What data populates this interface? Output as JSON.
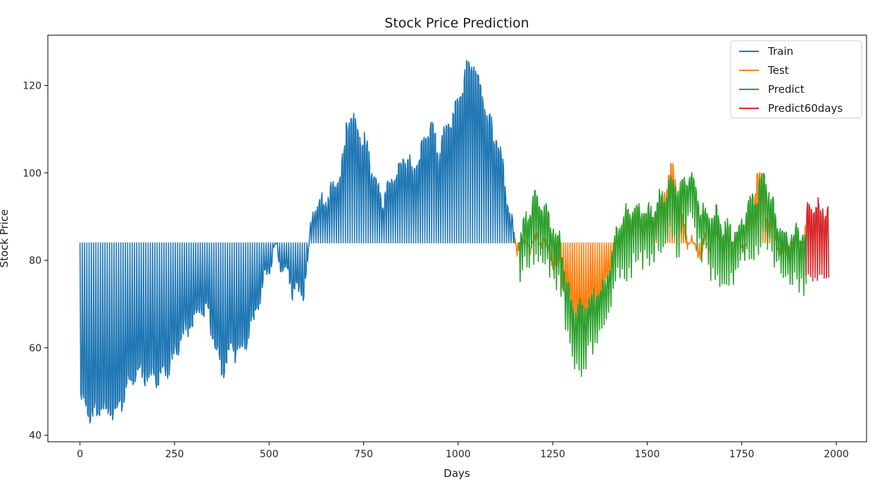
{
  "chart_data": {
    "type": "line",
    "title": "Stock Price Prediction",
    "xlabel": "Days",
    "ylabel": "Stock Price",
    "xlim": [
      -85,
      2080
    ],
    "ylim": [
      38.5,
      131.5
    ],
    "x_ticks": [
      0,
      250,
      500,
      750,
      1000,
      1250,
      1500,
      1750,
      2000
    ],
    "y_ticks": [
      40,
      60,
      80,
      100,
      120
    ],
    "grid": false,
    "legend_position": "top-right",
    "baseline": 84,
    "series": [
      {
        "name": "Train",
        "color": "#1f77b4",
        "x_start": 0,
        "x_end": 1150,
        "envelope": [
          [
            0,
            48
          ],
          [
            20,
            44
          ],
          [
            30,
            42
          ],
          [
            60,
            46
          ],
          [
            100,
            48
          ],
          [
            150,
            52
          ],
          [
            200,
            55
          ],
          [
            250,
            57
          ],
          [
            300,
            66
          ],
          [
            320,
            72
          ],
          [
            340,
            68
          ],
          [
            360,
            60
          ],
          [
            375,
            52
          ],
          [
            390,
            56
          ],
          [
            430,
            62
          ],
          [
            470,
            70
          ],
          [
            500,
            78
          ],
          [
            520,
            80
          ],
          [
            560,
            76
          ],
          [
            590,
            72
          ],
          [
            605,
            80
          ],
          [
            610,
            87
          ],
          [
            620,
            90
          ],
          [
            650,
            94
          ],
          [
            680,
            100
          ],
          [
            700,
            106
          ],
          [
            705,
            113
          ],
          [
            715,
            112
          ],
          [
            730,
            108
          ],
          [
            760,
            104
          ],
          [
            790,
            98
          ],
          [
            800,
            95
          ],
          [
            820,
            99
          ],
          [
            860,
            101
          ],
          [
            880,
            99
          ],
          [
            910,
            108
          ],
          [
            925,
            113
          ],
          [
            950,
            105
          ],
          [
            980,
            110
          ],
          [
            1000,
            115
          ],
          [
            1010,
            120
          ],
          [
            1020,
            125
          ],
          [
            1040,
            128
          ],
          [
            1060,
            120
          ],
          [
            1080,
            110
          ],
          [
            1100,
            106
          ],
          [
            1120,
            100
          ],
          [
            1135,
            92
          ],
          [
            1150,
            86
          ]
        ]
      },
      {
        "name": "Test",
        "color": "#ff7f0e",
        "x_start": 1150,
        "x_end": 1920,
        "envelope": [
          [
            1150,
            86
          ],
          [
            1180,
            84
          ],
          [
            1230,
            82
          ],
          [
            1270,
            80
          ],
          [
            1290,
            74
          ],
          [
            1310,
            66
          ],
          [
            1330,
            63
          ],
          [
            1350,
            68
          ],
          [
            1380,
            73
          ],
          [
            1400,
            80
          ],
          [
            1420,
            84
          ],
          [
            1450,
            87
          ],
          [
            1480,
            89
          ],
          [
            1520,
            92
          ],
          [
            1550,
            96
          ],
          [
            1565,
            100
          ],
          [
            1580,
            94
          ],
          [
            1600,
            86
          ],
          [
            1650,
            84
          ],
          [
            1700,
            84
          ],
          [
            1750,
            86
          ],
          [
            1780,
            90
          ],
          [
            1790,
            100
          ],
          [
            1800,
            96
          ],
          [
            1820,
            88
          ],
          [
            1860,
            84
          ],
          [
            1900,
            84
          ],
          [
            1920,
            84
          ]
        ]
      },
      {
        "name": "Predict",
        "color": "#2ca02c",
        "x_start": 1160,
        "x_end": 1920,
        "envelope": [
          [
            1160,
            86
          ],
          [
            1180,
            90
          ],
          [
            1200,
            92
          ],
          [
            1220,
            90
          ],
          [
            1250,
            88
          ],
          [
            1270,
            86
          ],
          [
            1290,
            74
          ],
          [
            1310,
            68
          ],
          [
            1330,
            66
          ],
          [
            1350,
            70
          ],
          [
            1380,
            74
          ],
          [
            1400,
            80
          ],
          [
            1420,
            87
          ],
          [
            1450,
            89
          ],
          [
            1480,
            91
          ],
          [
            1510,
            93
          ],
          [
            1540,
            95
          ],
          [
            1560,
            96
          ],
          [
            1580,
            94
          ],
          [
            1600,
            97
          ],
          [
            1615,
            101
          ],
          [
            1630,
            96
          ],
          [
            1660,
            90
          ],
          [
            1700,
            86
          ],
          [
            1740,
            88
          ],
          [
            1760,
            92
          ],
          [
            1790,
            94
          ],
          [
            1810,
            96
          ],
          [
            1830,
            92
          ],
          [
            1860,
            88
          ],
          [
            1900,
            86
          ],
          [
            1920,
            84
          ]
        ]
      },
      {
        "name": "Predict60days",
        "color": "#d62728",
        "x_start": 1920,
        "x_end": 1980,
        "envelope": [
          [
            1920,
            88
          ],
          [
            1940,
            91
          ],
          [
            1960,
            92
          ],
          [
            1980,
            94
          ]
        ]
      }
    ]
  }
}
